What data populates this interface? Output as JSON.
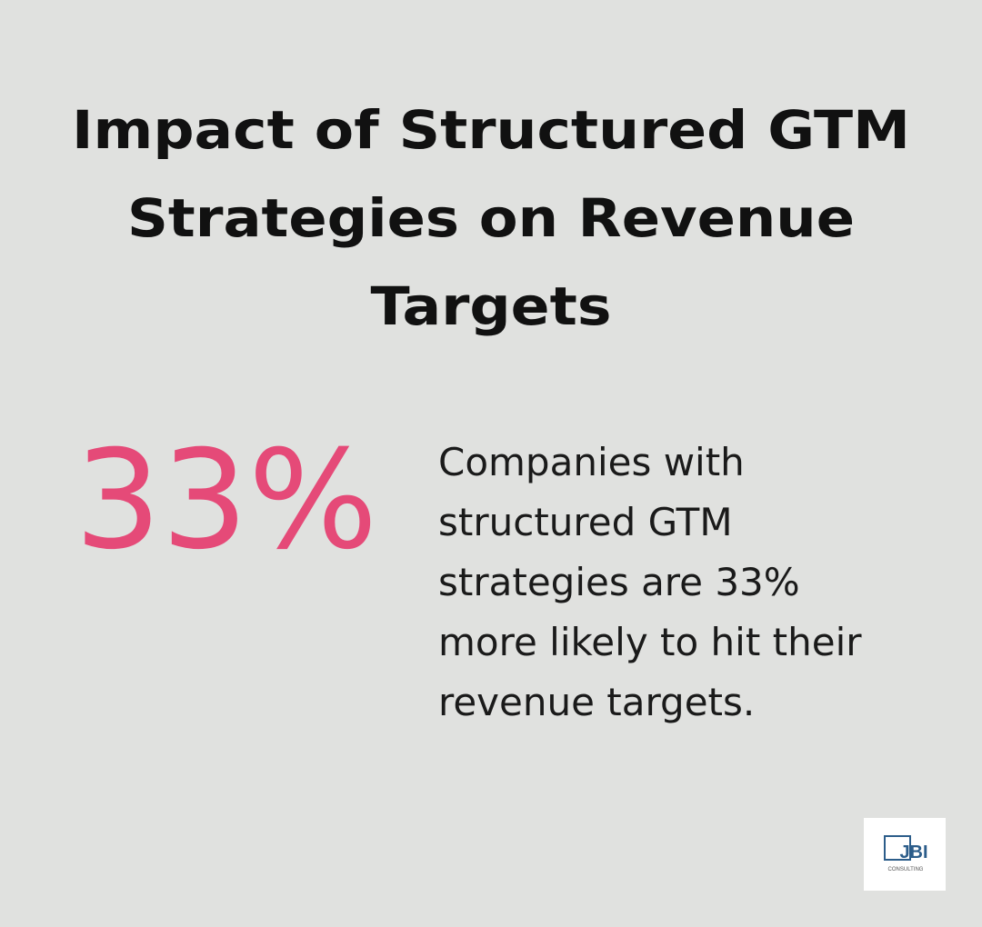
{
  "title_lines": [
    "Impact of Structured GTM",
    "Strategies on Revenue",
    "Targets"
  ],
  "stat": "33%",
  "description_lines": [
    "Companies with",
    "structured GTM",
    "strategies are 33%",
    "more likely to hit their",
    "revenue targets."
  ],
  "logo": {
    "name": "JBI",
    "subtitle": "CONSULTING"
  }
}
